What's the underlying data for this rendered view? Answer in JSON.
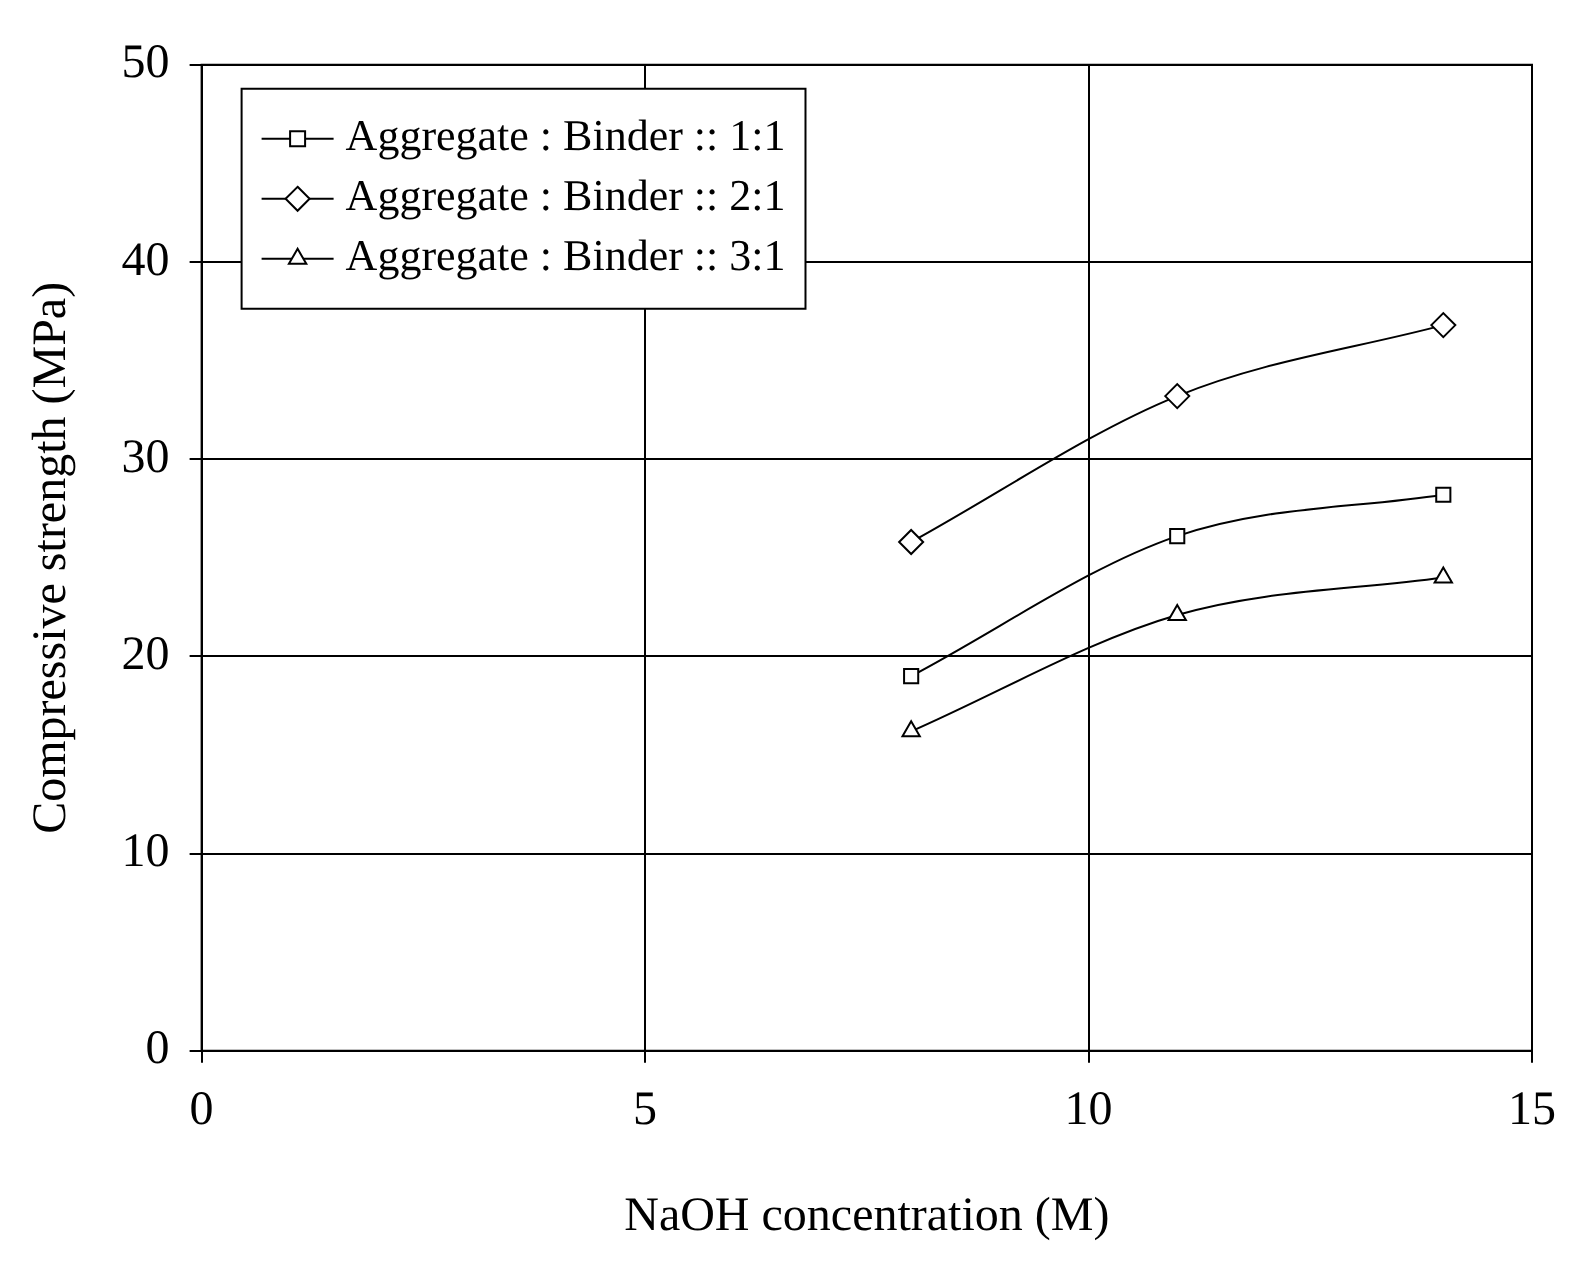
{
  "chart_data": {
    "type": "line",
    "xlabel": "NaOH concentration (M)",
    "ylabel": "Compressive strength (MPa)",
    "x": [
      8,
      11,
      14
    ],
    "series": [
      {
        "name": "Aggregate : Binder :: 1:1",
        "color": "#000000",
        "marker": "square",
        "values": [
          19,
          26.1,
          28.2
        ]
      },
      {
        "name": "Aggregate : Binder :: 2:1",
        "color": "#000000",
        "marker": "diamond",
        "values": [
          25.8,
          33.2,
          36.8
        ]
      },
      {
        "name": "Aggregate : Binder :: 3:1",
        "color": "#000000",
        "marker": "triangle",
        "values": [
          16.2,
          22.1,
          24
        ]
      }
    ],
    "xlim": [
      0,
      15
    ],
    "xticks": [
      0,
      5,
      10,
      15
    ],
    "ylim": [
      0,
      50
    ],
    "yticks": [
      0,
      10,
      20,
      30,
      40,
      50
    ],
    "grid": true,
    "legend": "top left"
  }
}
